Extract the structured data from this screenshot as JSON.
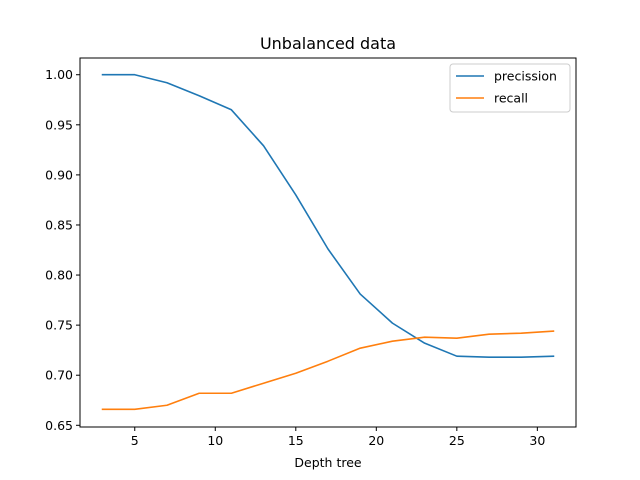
{
  "chart_data": {
    "type": "line",
    "title": "Unbalanced data",
    "xlabel": "Depth tree",
    "ylabel": "",
    "xlim": [
      1.6,
      32.4
    ],
    "ylim": [
      0.6483,
      1.0167
    ],
    "xticks": [
      5,
      10,
      15,
      20,
      25,
      30
    ],
    "xtick_labels": [
      "5",
      "10",
      "15",
      "20",
      "25",
      "30"
    ],
    "yticks": [
      0.65,
      0.7,
      0.75,
      0.8,
      0.85,
      0.9,
      0.95,
      1.0
    ],
    "ytick_labels": [
      "0.65",
      "0.70",
      "0.75",
      "0.80",
      "0.85",
      "0.90",
      "0.95",
      "1.00"
    ],
    "grid": false,
    "legend_position": "top-right",
    "x": [
      3,
      5,
      7,
      9,
      11,
      13,
      15,
      17,
      19,
      21,
      23,
      25,
      27,
      29,
      31
    ],
    "series": [
      {
        "name": "precission",
        "color": "#1f77b4",
        "values": [
          1.0,
          1.0,
          0.992,
          0.979,
          0.965,
          0.929,
          0.88,
          0.826,
          0.781,
          0.752,
          0.732,
          0.719,
          0.718,
          0.718,
          0.719
        ]
      },
      {
        "name": "recall",
        "color": "#ff7f0e",
        "values": [
          0.666,
          0.666,
          0.67,
          0.682,
          0.682,
          0.692,
          0.702,
          0.714,
          0.727,
          0.734,
          0.738,
          0.737,
          0.741,
          0.742,
          0.744
        ]
      }
    ]
  }
}
